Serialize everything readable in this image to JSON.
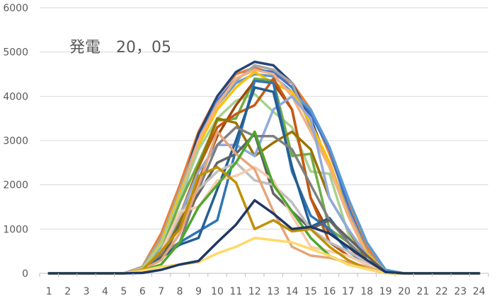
{
  "chart_data": {
    "type": "line",
    "title": "発電　20，05",
    "xlabel": "",
    "ylabel": "",
    "categories": [
      "1",
      "2",
      "3",
      "4",
      "5",
      "6",
      "7",
      "8",
      "9",
      "10",
      "11",
      "12",
      "13",
      "14",
      "15",
      "16",
      "17",
      "18",
      "19",
      "20",
      "21",
      "22",
      "23",
      "24"
    ],
    "ylim": [
      0,
      6000
    ],
    "yticks": [
      "0",
      "1000",
      "2000",
      "3000",
      "4000",
      "5000",
      "6000"
    ],
    "grid": true,
    "legend": "none",
    "series": [
      {
        "color": "#ED7D31",
        "values": [
          0,
          0,
          0,
          0,
          0,
          150,
          900,
          2000,
          3200,
          4000,
          4500,
          4650,
          4500,
          4300,
          3700,
          2700,
          1600,
          600,
          50,
          0,
          0,
          0,
          0,
          0
        ]
      },
      {
        "color": "#264478",
        "values": [
          0,
          0,
          0,
          0,
          0,
          120,
          700,
          1800,
          3150,
          4000,
          4550,
          4780,
          4700,
          4300,
          3500,
          2400,
          1300,
          500,
          30,
          0,
          0,
          0,
          0,
          0
        ]
      },
      {
        "color": "#4472C4",
        "values": [
          0,
          0,
          0,
          0,
          0,
          130,
          750,
          1900,
          3000,
          3900,
          4400,
          4600,
          4550,
          4200,
          3600,
          2800,
          1500,
          500,
          40,
          0,
          0,
          0,
          0,
          0
        ]
      },
      {
        "color": "#5B9BD5",
        "values": [
          0,
          0,
          0,
          0,
          0,
          120,
          600,
          1600,
          2900,
          3800,
          4300,
          4500,
          4450,
          4100,
          3700,
          2850,
          1700,
          700,
          80,
          0,
          0,
          0,
          0,
          0
        ]
      },
      {
        "color": "#A5A5A5",
        "values": [
          0,
          0,
          0,
          0,
          0,
          140,
          800,
          1900,
          3000,
          3850,
          4350,
          4700,
          4600,
          4300,
          3300,
          2500,
          1400,
          500,
          30,
          0,
          0,
          0,
          0,
          0
        ]
      },
      {
        "color": "#FFC000",
        "values": [
          0,
          0,
          0,
          0,
          0,
          100,
          700,
          1800,
          2900,
          3700,
          4200,
          4550,
          4300,
          4100,
          3400,
          2500,
          1300,
          450,
          30,
          0,
          0,
          0,
          0,
          0
        ]
      },
      {
        "color": "#F4B183",
        "values": [
          0,
          0,
          0,
          0,
          0,
          110,
          650,
          1700,
          3000,
          3800,
          4400,
          4600,
          4500,
          4000,
          3200,
          2400,
          1300,
          400,
          20,
          0,
          0,
          0,
          0,
          0
        ]
      },
      {
        "color": "#A9D18E",
        "values": [
          0,
          0,
          0,
          0,
          0,
          120,
          650,
          1700,
          2800,
          3500,
          3900,
          4050,
          3650,
          3300,
          2300,
          2250,
          900,
          300,
          20,
          0,
          0,
          0,
          0,
          0
        ]
      },
      {
        "color": "#70AD47",
        "values": [
          0,
          0,
          0,
          0,
          0,
          100,
          500,
          1600,
          2500,
          3450,
          3500,
          4400,
          4350,
          2650,
          2700,
          1000,
          700,
          200,
          10,
          0,
          0,
          0,
          0,
          0
        ]
      },
      {
        "color": "#9E480E",
        "values": [
          0,
          0,
          0,
          0,
          0,
          100,
          400,
          1100,
          2100,
          3100,
          3800,
          4350,
          4300,
          3700,
          1700,
          900,
          600,
          250,
          10,
          0,
          0,
          0,
          0,
          0
        ]
      },
      {
        "color": "#C55A11",
        "values": [
          0,
          0,
          0,
          0,
          0,
          100,
          450,
          1300,
          2400,
          3300,
          3600,
          3800,
          4400,
          3700,
          1700,
          700,
          400,
          200,
          10,
          0,
          0,
          0,
          0,
          0
        ]
      },
      {
        "color": "#997300",
        "values": [
          0,
          0,
          0,
          0,
          0,
          80,
          400,
          1200,
          2400,
          3500,
          3400,
          2650,
          2950,
          3200,
          2800,
          1700,
          1000,
          300,
          10,
          0,
          0,
          0,
          0,
          0
        ]
      },
      {
        "color": "#8FAADC",
        "values": [
          0,
          0,
          0,
          0,
          0,
          100,
          450,
          1300,
          2300,
          2900,
          2900,
          2650,
          3700,
          4000,
          3500,
          1700,
          1000,
          400,
          30,
          0,
          0,
          0,
          0,
          0
        ]
      },
      {
        "color": "#2E75B6",
        "values": [
          0,
          0,
          0,
          0,
          0,
          80,
          350,
          700,
          950,
          1200,
          2800,
          4350,
          4300,
          2300,
          1300,
          1000,
          500,
          200,
          10,
          0,
          0,
          0,
          0,
          0
        ]
      },
      {
        "color": "#255E91",
        "values": [
          0,
          0,
          0,
          0,
          0,
          70,
          350,
          650,
          800,
          1900,
          3000,
          4200,
          4100,
          2400,
          1050,
          1250,
          700,
          300,
          20,
          0,
          0,
          0,
          0,
          0
        ]
      },
      {
        "color": "#7F7F7F",
        "values": [
          0,
          0,
          0,
          0,
          0,
          80,
          450,
          700,
          1900,
          2900,
          3300,
          3100,
          3100,
          2800,
          2000,
          1200,
          700,
          300,
          20,
          0,
          0,
          0,
          0,
          0
        ]
      },
      {
        "color": "#636363",
        "values": [
          0,
          0,
          0,
          0,
          0,
          90,
          300,
          1100,
          1800,
          2500,
          2700,
          3150,
          1800,
          1400,
          1000,
          1200,
          800,
          400,
          30,
          0,
          0,
          0,
          0,
          0
        ]
      },
      {
        "color": "#BFBFBF",
        "values": [
          0,
          0,
          0,
          0,
          0,
          100,
          500,
          1300,
          1900,
          2300,
          2500,
          2100,
          2000,
          1600,
          1000,
          700,
          500,
          250,
          10,
          0,
          0,
          0,
          0,
          0
        ]
      },
      {
        "color": "#F8CBAD",
        "values": [
          0,
          0,
          0,
          0,
          0,
          90,
          500,
          1400,
          1500,
          2100,
          2200,
          2400,
          2100,
          1300,
          600,
          500,
          400,
          200,
          10,
          0,
          0,
          0,
          0,
          0
        ]
      },
      {
        "color": "#E6A57B",
        "values": [
          0,
          0,
          0,
          0,
          0,
          80,
          300,
          900,
          2000,
          3200,
          2700,
          2350,
          1400,
          600,
          400,
          350,
          250,
          150,
          10,
          0,
          0,
          0,
          0,
          0
        ]
      },
      {
        "color": "#4EA72E",
        "values": [
          0,
          0,
          0,
          0,
          0,
          60,
          200,
          700,
          1500,
          2000,
          2500,
          3200,
          2000,
          1400,
          800,
          400,
          200,
          100,
          5,
          0,
          0,
          0,
          0,
          0
        ]
      },
      {
        "color": "#BF9000",
        "values": [
          0,
          0,
          0,
          0,
          0,
          80,
          500,
          1000,
          2200,
          2400,
          2050,
          1000,
          1200,
          950,
          1000,
          600,
          300,
          100,
          5,
          0,
          0,
          0,
          0,
          0
        ]
      },
      {
        "color": "#FFD966",
        "values": [
          0,
          0,
          0,
          0,
          0,
          60,
          150,
          200,
          250,
          450,
          600,
          800,
          750,
          700,
          550,
          400,
          200,
          100,
          5,
          0,
          0,
          0,
          0,
          0
        ]
      },
      {
        "color": "#1F3864",
        "values": [
          0,
          0,
          0,
          0,
          0,
          10,
          80,
          200,
          280,
          700,
          1100,
          1650,
          1350,
          1000,
          1050,
          900,
          600,
          300,
          30,
          0,
          0,
          0,
          0,
          0
        ]
      }
    ]
  }
}
